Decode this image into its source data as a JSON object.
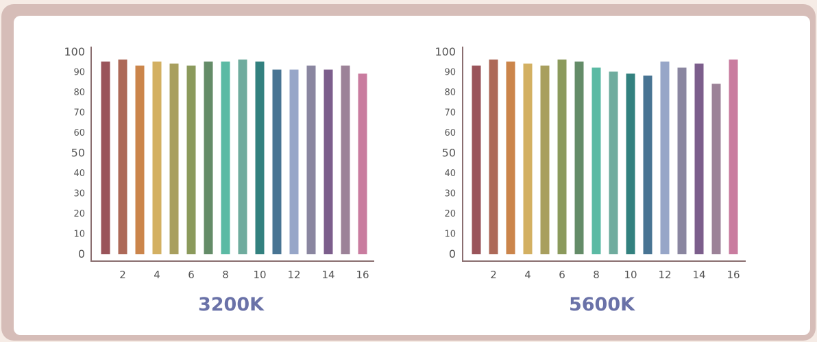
{
  "accent_color": "#6a72a8",
  "axis_color": "#8a6e70",
  "bar_colors": [
    "#9a545a",
    "#ad6958",
    "#cb854b",
    "#d3b062",
    "#a89f5e",
    "#8b9a5c",
    "#648c68",
    "#5bbaa4",
    "#6fac9e",
    "#33817f",
    "#487493",
    "#97a6c8",
    "#8a86a0",
    "#7c5e8c",
    "#9c8298",
    "#c97c9f"
  ],
  "chart_data": [
    {
      "type": "bar",
      "title": "3200K",
      "categories": [
        1,
        2,
        3,
        4,
        5,
        6,
        7,
        8,
        9,
        10,
        11,
        12,
        13,
        14,
        15,
        16
      ],
      "values": [
        95,
        96,
        93,
        95,
        94,
        93,
        95,
        95,
        96,
        95,
        91,
        91,
        93,
        91,
        93,
        89
      ],
      "ylim": [
        0,
        100
      ],
      "yticks": [
        "100",
        "90",
        "80",
        "70",
        "60",
        "50",
        "40",
        "30",
        "20",
        "10",
        "0"
      ],
      "xticks": [
        "2",
        "4",
        "6",
        "8",
        "10",
        "12",
        "14",
        "16"
      ],
      "xlabel": "",
      "ylabel": "",
      "grid": false
    },
    {
      "type": "bar",
      "title": "5600K",
      "categories": [
        1,
        2,
        3,
        4,
        5,
        6,
        7,
        8,
        9,
        10,
        11,
        12,
        13,
        14,
        15,
        16
      ],
      "values": [
        93,
        96,
        95,
        94,
        93,
        96,
        95,
        92,
        90,
        89,
        88,
        95,
        92,
        94,
        84,
        96
      ],
      "ylim": [
        0,
        100
      ],
      "yticks": [
        "100",
        "90",
        "80",
        "70",
        "60",
        "50",
        "40",
        "30",
        "20",
        "10",
        "0"
      ],
      "xticks": [
        "2",
        "4",
        "6",
        "8",
        "10",
        "12",
        "14",
        "16"
      ],
      "xlabel": "",
      "ylabel": "",
      "grid": false
    }
  ]
}
